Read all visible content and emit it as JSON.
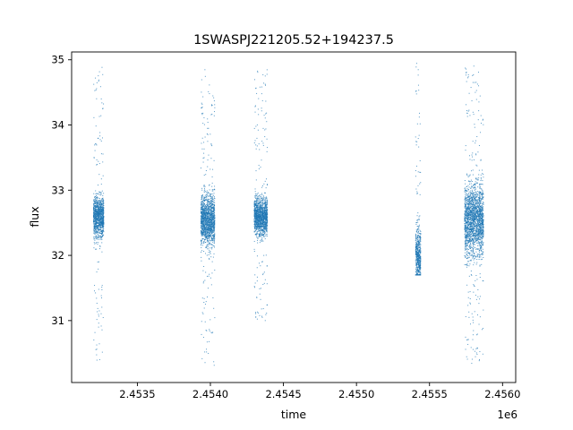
{
  "chart_data": {
    "type": "scatter",
    "title": "1SWASPJ221205.52+194237.5",
    "xlabel": "time",
    "ylabel": "flux",
    "x_offset_label": "1e6",
    "xlim": [
      2453050,
      2456090
    ],
    "ylim": [
      30.05,
      35.12
    ],
    "x_ticks": [
      {
        "value": 2453500,
        "label": "2.4535"
      },
      {
        "value": 2454000,
        "label": "2.4540"
      },
      {
        "value": 2454500,
        "label": "2.4545"
      },
      {
        "value": 2455000,
        "label": "2.4550"
      },
      {
        "value": 2455500,
        "label": "2.4555"
      },
      {
        "value": 2456000,
        "label": "2.4560"
      }
    ],
    "y_ticks": [
      {
        "value": 31,
        "label": "31"
      },
      {
        "value": 32,
        "label": "32"
      },
      {
        "value": 33,
        "label": "33"
      },
      {
        "value": 34,
        "label": "34"
      },
      {
        "value": 35,
        "label": "35"
      }
    ],
    "grid": false,
    "legend": "none",
    "marker_color": "#1f77b4",
    "observing_seasons": [
      {
        "t_start": 2453200,
        "t_end": 2453270,
        "flux_mean": 32.6,
        "flux_core_spread": 0.22,
        "flux_min": 30.38,
        "flux_max": 34.92
      },
      {
        "t_start": 2453935,
        "t_end": 2454030,
        "flux_mean": 32.55,
        "flux_core_spread": 0.27,
        "flux_min": 30.3,
        "flux_max": 34.93
      },
      {
        "t_start": 2454300,
        "t_end": 2454390,
        "flux_mean": 32.6,
        "flux_core_spread": 0.2,
        "flux_min": 31.0,
        "flux_max": 34.85
      },
      {
        "t_start": 2455405,
        "t_end": 2455440,
        "flux_mean": 32.0,
        "flux_core_spread": 0.3,
        "flux_min": 31.7,
        "flux_max": 34.95
      },
      {
        "t_start": 2455740,
        "t_end": 2455870,
        "flux_mean": 32.55,
        "flux_core_spread": 0.38,
        "flux_min": 30.32,
        "flux_max": 34.95
      }
    ]
  }
}
